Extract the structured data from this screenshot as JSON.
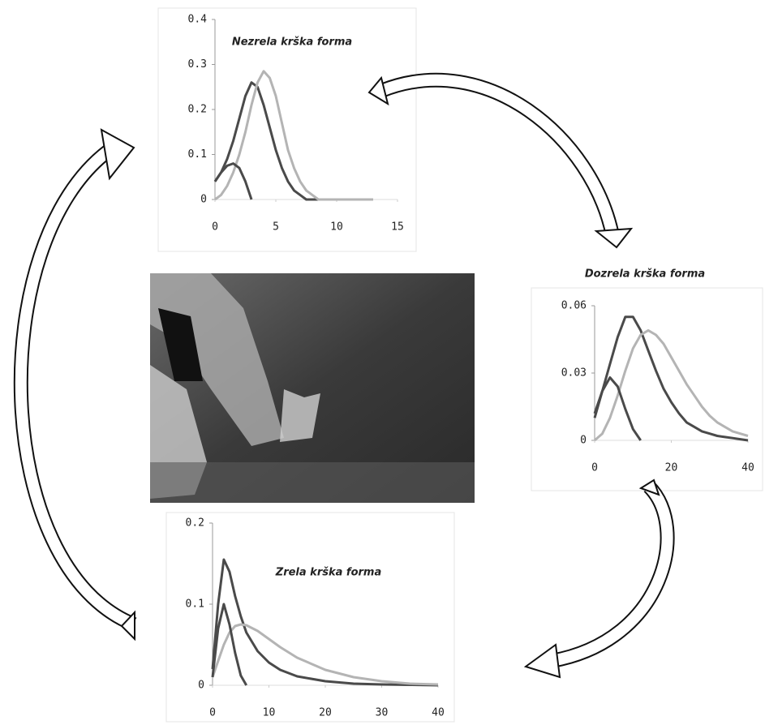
{
  "chart_data": [
    {
      "type": "line",
      "title": "Nezrela krška forma",
      "x": [
        0,
        0.5,
        1,
        1.5,
        2,
        2.5,
        3,
        3.5,
        4,
        4.5,
        5,
        5.5,
        6,
        6.5,
        7,
        7.5,
        8,
        8.5,
        9,
        9.5,
        10,
        10.5,
        11,
        11.5,
        12,
        12.5,
        13
      ],
      "series": [
        {
          "color": "#4a4a4a",
          "values": [
            0.04,
            0.06,
            0.09,
            0.13,
            0.18,
            0.23,
            0.26,
            0.25,
            0.21,
            0.16,
            0.11,
            0.07,
            0.04,
            0.02,
            0.01,
            0,
            0,
            0,
            0,
            0,
            0,
            0,
            0,
            0,
            0,
            0,
            0
          ]
        },
        {
          "color": "#b4b4b4",
          "values": [
            0,
            0.01,
            0.03,
            0.06,
            0.1,
            0.15,
            0.21,
            0.26,
            0.285,
            0.27,
            0.23,
            0.17,
            0.11,
            0.07,
            0.04,
            0.02,
            0.01,
            0,
            0,
            0,
            0,
            0,
            0,
            0,
            0,
            0,
            0
          ]
        },
        {
          "color": "#4a4a4a",
          "values": [
            0.04,
            0.06,
            0.075,
            0.08,
            0.07,
            0.04,
            0,
            null,
            null,
            null,
            null,
            null,
            null,
            null,
            null,
            null,
            null,
            null,
            null,
            null,
            null,
            null,
            null,
            null,
            null,
            null,
            null
          ]
        }
      ],
      "xlim": [
        0,
        15
      ],
      "xticks": [
        0,
        5,
        10,
        15
      ],
      "ylim": [
        0,
        0.4
      ],
      "yticks": [
        0,
        0.1,
        0.2,
        0.3,
        0.4
      ]
    },
    {
      "type": "line",
      "title": "Dozrela krška forma",
      "x": [
        0,
        2,
        4,
        6,
        8,
        10,
        12,
        14,
        16,
        18,
        20,
        22,
        24,
        26,
        28,
        30,
        32,
        34,
        36,
        38,
        40
      ],
      "series": [
        {
          "color": "#4a4a4a",
          "values": [
            0.012,
            0.022,
            0.034,
            0.046,
            0.055,
            0.055,
            0.049,
            0.04,
            0.031,
            0.023,
            0.017,
            0.012,
            0.008,
            0.006,
            0.004,
            0.003,
            0.002,
            0.0015,
            0.001,
            0.0005,
            0
          ]
        },
        {
          "color": "#b4b4b4",
          "values": [
            0,
            0.003,
            0.01,
            0.02,
            0.031,
            0.041,
            0.047,
            0.049,
            0.047,
            0.043,
            0.037,
            0.031,
            0.025,
            0.02,
            0.015,
            0.011,
            0.008,
            0.006,
            0.004,
            0.003,
            0.002
          ]
        },
        {
          "color": "#4a4a4a",
          "values": [
            0.01,
            0.022,
            0.028,
            0.024,
            0.014,
            0.005,
            0,
            null,
            null,
            null,
            null,
            null,
            null,
            null,
            null,
            null,
            null,
            null,
            null,
            null,
            null
          ]
        }
      ],
      "xlim": [
        0,
        40
      ],
      "xticks": [
        0,
        20,
        40
      ],
      "ylim": [
        0,
        0.06
      ],
      "yticks": [
        0,
        0.03,
        0.06
      ]
    },
    {
      "type": "line",
      "title": "Zrela krška forma",
      "x": [
        0,
        1,
        2,
        3,
        4,
        5,
        6,
        8,
        10,
        12,
        15,
        20,
        25,
        30,
        35,
        40
      ],
      "series": [
        {
          "color": "#4a4a4a",
          "values": [
            0.02,
            0.1,
            0.155,
            0.14,
            0.11,
            0.085,
            0.065,
            0.042,
            0.028,
            0.019,
            0.011,
            0.005,
            0.002,
            0.001,
            0.0005,
            0
          ]
        },
        {
          "color": "#b4b4b4",
          "values": [
            0.01,
            0.03,
            0.05,
            0.065,
            0.073,
            0.075,
            0.074,
            0.067,
            0.057,
            0.047,
            0.034,
            0.019,
            0.01,
            0.005,
            0.002,
            0.001
          ]
        },
        {
          "color": "#4a4a4a",
          "values": [
            0.01,
            0.07,
            0.1,
            0.075,
            0.04,
            0.012,
            0,
            null,
            null,
            null,
            null,
            null,
            null,
            null,
            null,
            null
          ]
        }
      ],
      "xlim": [
        0,
        40
      ],
      "xticks": [
        0,
        10,
        20,
        30,
        40
      ],
      "ylim": [
        0,
        0.2
      ],
      "yticks": [
        0,
        0.1,
        0.2
      ]
    }
  ]
}
